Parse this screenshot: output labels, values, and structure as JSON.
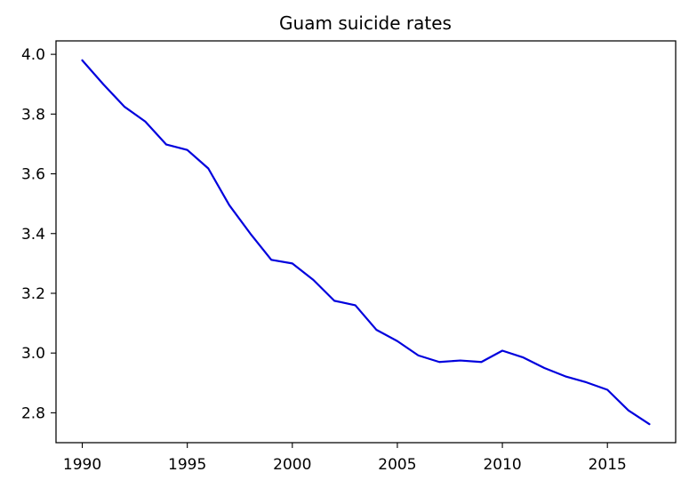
{
  "chart_data": {
    "type": "line",
    "title": "Guam suicide rates",
    "xlabel": "",
    "ylabel": "",
    "xlim": [
      1988.75,
      2018.25
    ],
    "ylim": [
      2.7,
      4.045
    ],
    "x_ticks": [
      1990,
      1995,
      2000,
      2005,
      2010,
      2015
    ],
    "x_tick_labels": [
      "1990",
      "1995",
      "2000",
      "2005",
      "2010",
      "2015"
    ],
    "y_ticks": [
      2.8,
      3.0,
      3.2,
      3.4,
      3.6,
      3.8,
      4.0
    ],
    "y_tick_labels": [
      "2.8",
      "3.0",
      "3.2",
      "3.4",
      "3.6",
      "3.8",
      "4.0"
    ],
    "grid": false,
    "series": [
      {
        "name": "Guam",
        "color": "#0000dd",
        "x": [
          1990,
          1991,
          1992,
          1993,
          1994,
          1995,
          1996,
          1997,
          1998,
          1999,
          2000,
          2001,
          2002,
          2003,
          2004,
          2005,
          2006,
          2007,
          2008,
          2009,
          2010,
          2011,
          2012,
          2013,
          2014,
          2015,
          2016,
          2017
        ],
        "values": [
          3.98,
          3.9,
          3.825,
          3.775,
          3.698,
          3.68,
          3.618,
          3.495,
          3.4,
          3.312,
          3.3,
          3.245,
          3.175,
          3.16,
          3.078,
          3.04,
          2.992,
          2.97,
          2.975,
          2.97,
          3.008,
          2.985,
          2.95,
          2.922,
          2.902,
          2.877,
          2.808,
          2.762
        ]
      }
    ]
  }
}
